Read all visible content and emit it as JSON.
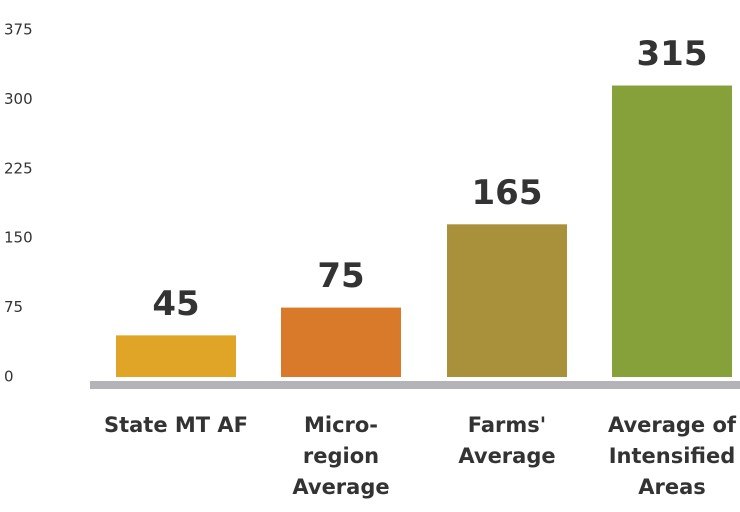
{
  "chart_data": {
    "type": "bar",
    "categories": [
      "State MT AF",
      "Micro-region Average",
      "Farms' Average",
      "Average of Intensified Areas"
    ],
    "values": [
      45,
      75,
      165,
      315
    ],
    "colors": [
      "#e0a526",
      "#d9792a",
      "#a8913a",
      "#86a03a"
    ],
    "ylim": [
      0,
      375
    ],
    "yticks": [
      0,
      75,
      150,
      225,
      300,
      375
    ],
    "grid": false
  }
}
